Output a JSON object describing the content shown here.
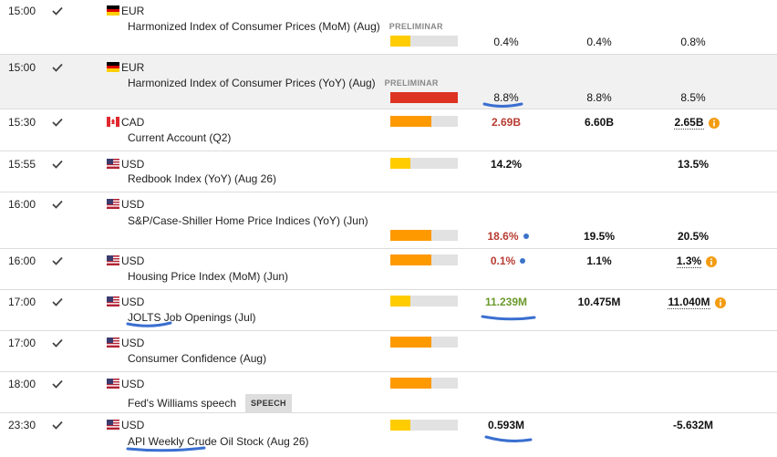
{
  "calendar": {
    "rows": [
      {
        "time": "15:00",
        "currency": "EUR",
        "event": "Harmonized Index of Consumer Prices (MoM) (Aug)",
        "tag": "PRELIMINAR",
        "impact": "low",
        "actual": "0.4%",
        "forecast": "0.4%",
        "previous": "0.8%",
        "actual_tone": "neutral"
      },
      {
        "time": "15:00",
        "currency": "EUR",
        "event": "Harmonized Index of Consumer Prices (YoY) (Aug)",
        "tag": "PRELIMINAR",
        "impact": "high",
        "actual": "8.8%",
        "forecast": "8.8%",
        "previous": "8.5%",
        "actual_tone": "neutral",
        "highlighted": true
      },
      {
        "time": "15:30",
        "currency": "CAD",
        "event": "Current Account (Q2)",
        "impact": "medium",
        "actual": "2.69B",
        "forecast": "6.60B",
        "previous": "2.65B",
        "actual_tone": "negative",
        "previous_revised": true
      },
      {
        "time": "15:55",
        "currency": "USD",
        "event": "Redbook Index (YoY) (Aug 26)",
        "impact": "low",
        "actual": "14.2%",
        "previous": "13.5%",
        "actual_tone": "neutral"
      },
      {
        "time": "16:00",
        "currency": "USD",
        "event": "S&P/Case-Shiller Home Price Indices (YoY) (Jun)",
        "impact": "medium",
        "actual": "18.6%",
        "forecast": "19.5%",
        "previous": "20.5%",
        "actual_tone": "negative",
        "actual_note": true
      },
      {
        "time": "16:00",
        "currency": "USD",
        "event": "Housing Price Index (MoM) (Jun)",
        "impact": "medium",
        "actual": "0.1%",
        "forecast": "1.1%",
        "previous": "1.3%",
        "actual_tone": "negative",
        "actual_note": true,
        "previous_revised": true
      },
      {
        "time": "17:00",
        "currency": "USD",
        "event": "JOLTS Job Openings (Jul)",
        "impact": "low",
        "actual": "11.239M",
        "forecast": "10.475M",
        "previous": "11.040M",
        "actual_tone": "positive",
        "previous_revised": true
      },
      {
        "time": "17:00",
        "currency": "USD",
        "event": "Consumer Confidence (Aug)",
        "impact": "medium"
      },
      {
        "time": "18:00",
        "currency": "USD",
        "event": "Fed's Williams speech",
        "tag": "SPEECH",
        "impact": "medium"
      },
      {
        "time": "23:30",
        "currency": "USD",
        "event": "API Weekly Crude Oil Stock (Aug 26)",
        "impact": "low",
        "actual": "0.593M",
        "previous": "-5.632M",
        "actual_tone": "neutral"
      }
    ]
  }
}
